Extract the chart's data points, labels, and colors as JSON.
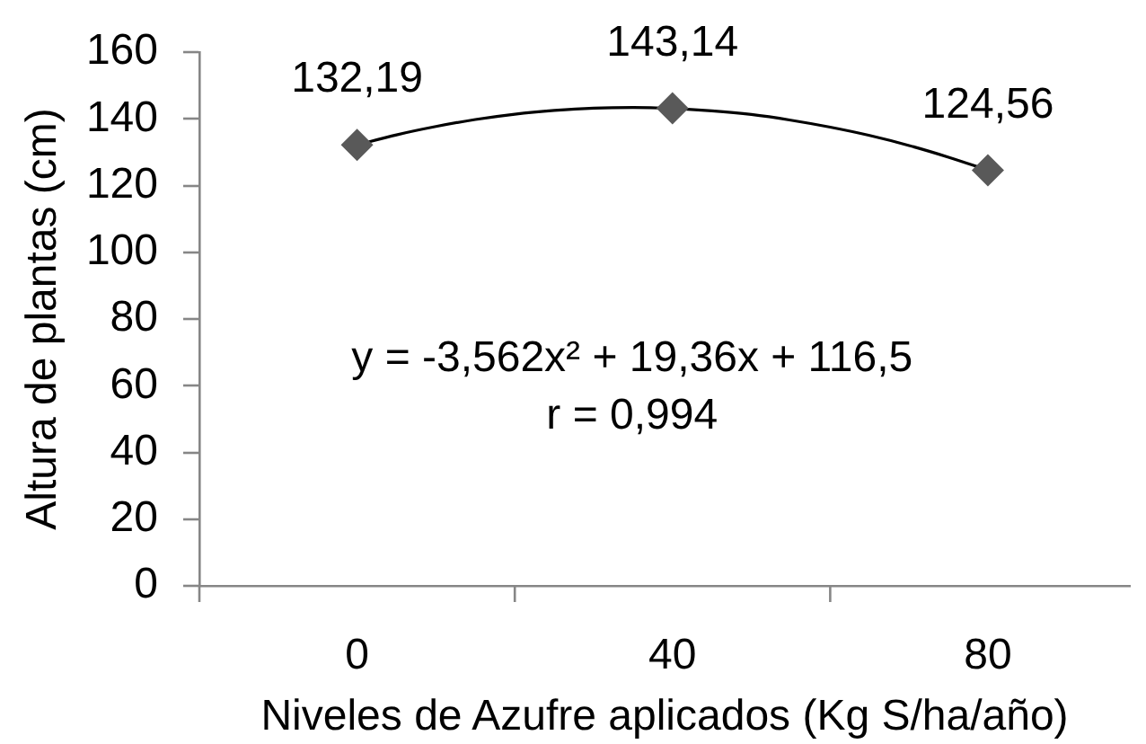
{
  "chart_data": {
    "type": "scatter",
    "xlabel": "Niveles de Azufre aplicados (Kg S/ha/año)",
    "ylabel": "Altura de plantas (cm)",
    "x": [
      0,
      40,
      80
    ],
    "xlim": [
      -20,
      98
    ],
    "xticks": [
      {
        "value": -20,
        "label": null
      },
      0,
      {
        "value": 20,
        "label": null
      },
      40,
      {
        "value": 60,
        "label": null
      },
      80
    ],
    "ylim": [
      0,
      160
    ],
    "yticks": [
      0,
      20,
      40,
      60,
      80,
      100,
      120,
      140,
      160
    ],
    "series": [
      {
        "type": "scatter",
        "color": "#595959",
        "marker": "diamond",
        "values": [
          132.19,
          143.14,
          124.56
        ],
        "value_labels": [
          "132,19",
          "143,14",
          "124,56"
        ]
      },
      {
        "type": "line",
        "color": "#000000",
        "marker": "none",
        "x": [
          0,
          5,
          10,
          15,
          20,
          25,
          30,
          35,
          40,
          45,
          50,
          55,
          60,
          65,
          70,
          75,
          80
        ],
        "values": [
          132.2,
          135.2,
          137.7,
          139.8,
          141.4,
          142.5,
          143.2,
          143.4,
          143.1,
          142.4,
          141.3,
          139.6,
          137.5,
          135,
          132,
          128.5,
          124.6
        ]
      }
    ],
    "annotations": [
      "y = -3,562x² + 19,36x + 116,5",
      "r = 0,994"
    ]
  }
}
